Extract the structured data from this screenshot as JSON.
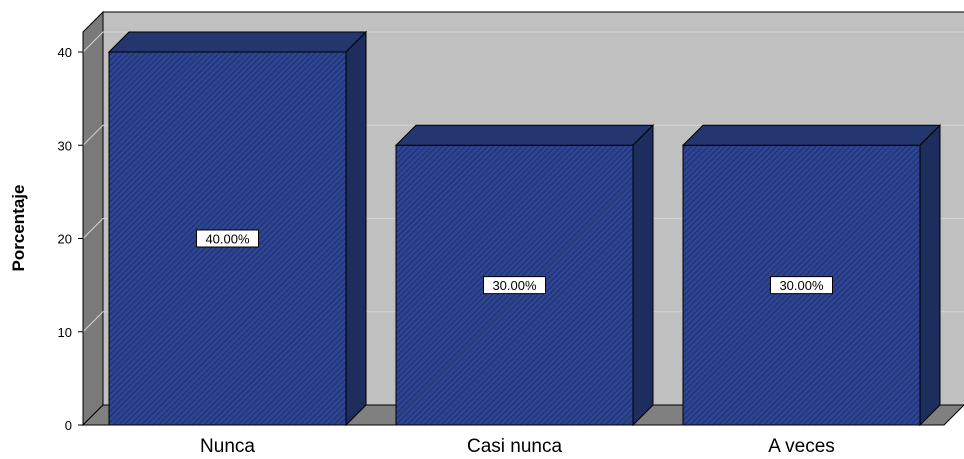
{
  "chart_data": {
    "type": "bar",
    "categories": [
      "Nunca",
      "Casi nunca",
      "A veces"
    ],
    "values": [
      40,
      30,
      30
    ],
    "data_labels": [
      "40.00%",
      "30.00%",
      "30.00%"
    ],
    "ylabel": "Porcentaje",
    "xlabel": "",
    "ylim": [
      0,
      40
    ],
    "yticks": [
      "0",
      "10",
      "20",
      "30",
      "40"
    ],
    "grid": true,
    "three_d": true,
    "colors": {
      "bar_face": "#2e4494",
      "bar_top": "#24366e",
      "bar_side": "#1d2d5e",
      "bar_hatch": "#1b2a5a",
      "plot_back": "#c0c0c0",
      "plot_floor": "#808080",
      "left_wall": "#7a7a7a",
      "grid": "#d4d4d4"
    }
  }
}
